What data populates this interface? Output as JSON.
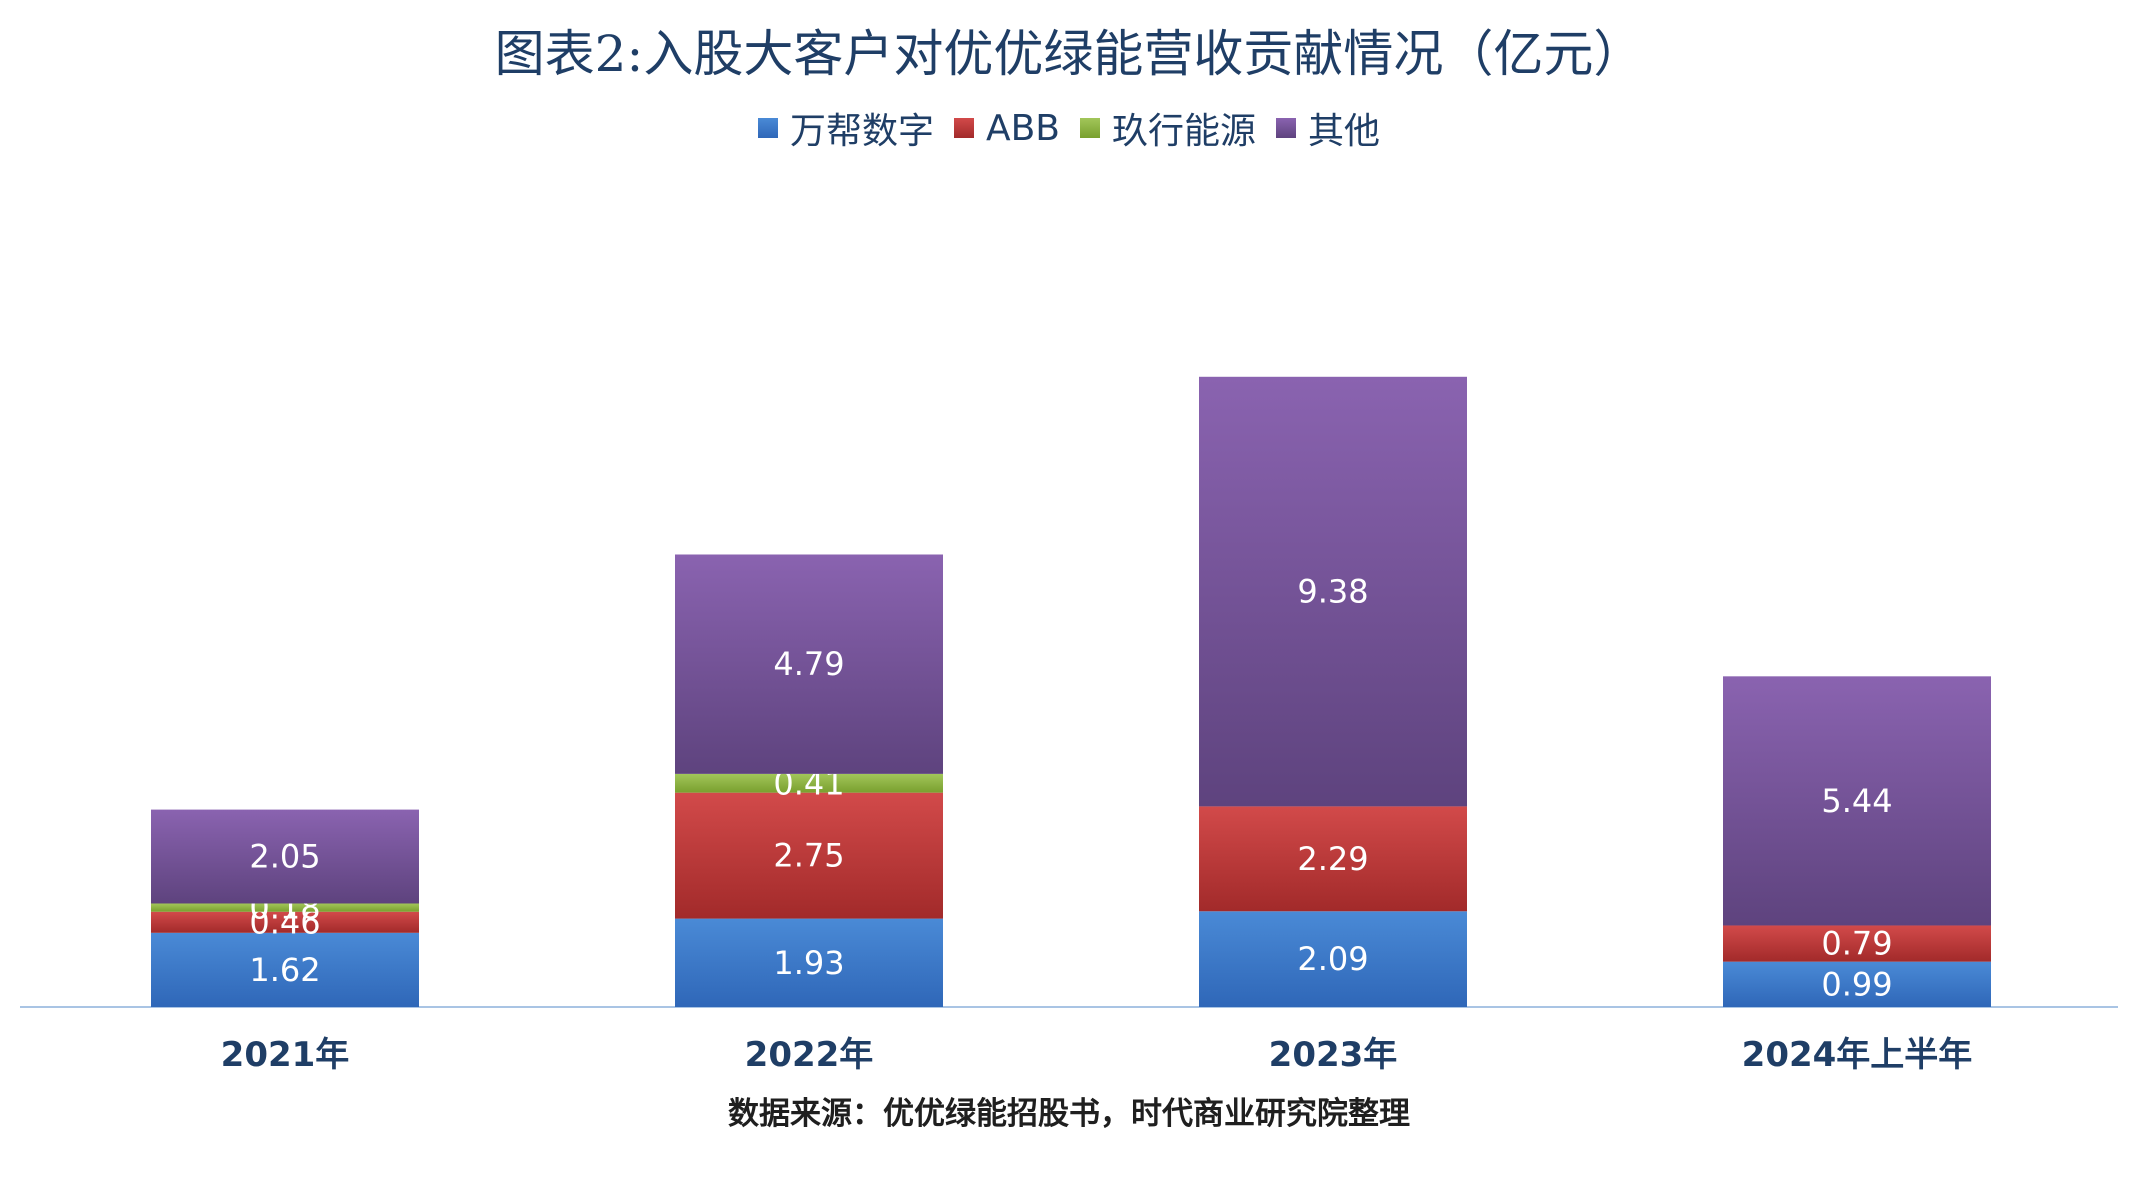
{
  "title": "图表2:入股大客户对优优绿能营收贡献情况（亿元）",
  "source": "数据来源：优优绿能招股书，时代商业研究院整理",
  "legend": [
    "万帮数字",
    "ABB",
    "玖行能源",
    "其他"
  ],
  "colors": {
    "万帮数字": [
      "#2f67b8",
      "#4a8ad6"
    ],
    "ABB": [
      "#a22a2a",
      "#d24a4a"
    ],
    "玖行能源": [
      "#79a02e",
      "#a2c65a"
    ],
    "其他": [
      "#5e437e",
      "#8a63b0"
    ]
  },
  "chart_data": {
    "type": "bar",
    "stacked": true,
    "title": "图表2:入股大客户对优优绿能营收贡献情况（亿元）",
    "categories": [
      "2021年",
      "2022年",
      "2023年",
      "2024年上半年"
    ],
    "series": [
      {
        "name": "万帮数字",
        "values": [
          1.62,
          1.93,
          2.09,
          0.99
        ]
      },
      {
        "name": "ABB",
        "values": [
          0.46,
          2.75,
          2.29,
          0.79
        ]
      },
      {
        "name": "玖行能源",
        "values": [
          0.18,
          0.41,
          null,
          null
        ]
      },
      {
        "name": "其他",
        "values": [
          2.05,
          4.79,
          9.38,
          5.44
        ]
      }
    ],
    "legend_position": "top-center",
    "grid": false
  }
}
